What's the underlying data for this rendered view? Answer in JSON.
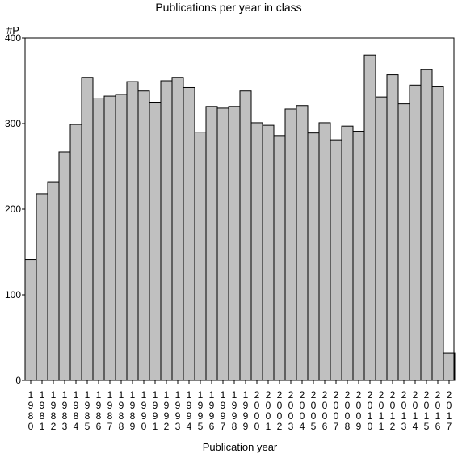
{
  "chart_data": {
    "type": "bar",
    "title": "Publications per year in class",
    "xlabel": "Publication year",
    "ylabel": "#P",
    "ylim": [
      0,
      400
    ],
    "yticks": [
      0,
      100,
      200,
      300,
      400
    ],
    "grid": false,
    "bar_color": "#c0c0c0",
    "categories": [
      "1980",
      "1981",
      "1982",
      "1983",
      "1984",
      "1985",
      "1986",
      "1987",
      "1988",
      "1989",
      "1990",
      "1991",
      "1992",
      "1993",
      "1994",
      "1995",
      "1996",
      "1997",
      "1998",
      "1999",
      "2000",
      "2001",
      "2002",
      "2003",
      "2004",
      "2005",
      "2006",
      "2007",
      "2008",
      "2009",
      "2010",
      "2011",
      "2012",
      "2013",
      "2014",
      "2015",
      "2016",
      "2017"
    ],
    "values": [
      141,
      218,
      232,
      267,
      299,
      354,
      329,
      332,
      334,
      349,
      338,
      325,
      350,
      354,
      342,
      290,
      320,
      318,
      320,
      338,
      301,
      298,
      286,
      317,
      321,
      289,
      301,
      281,
      297,
      291,
      380,
      331,
      357,
      323,
      345,
      363,
      343,
      32
    ]
  }
}
